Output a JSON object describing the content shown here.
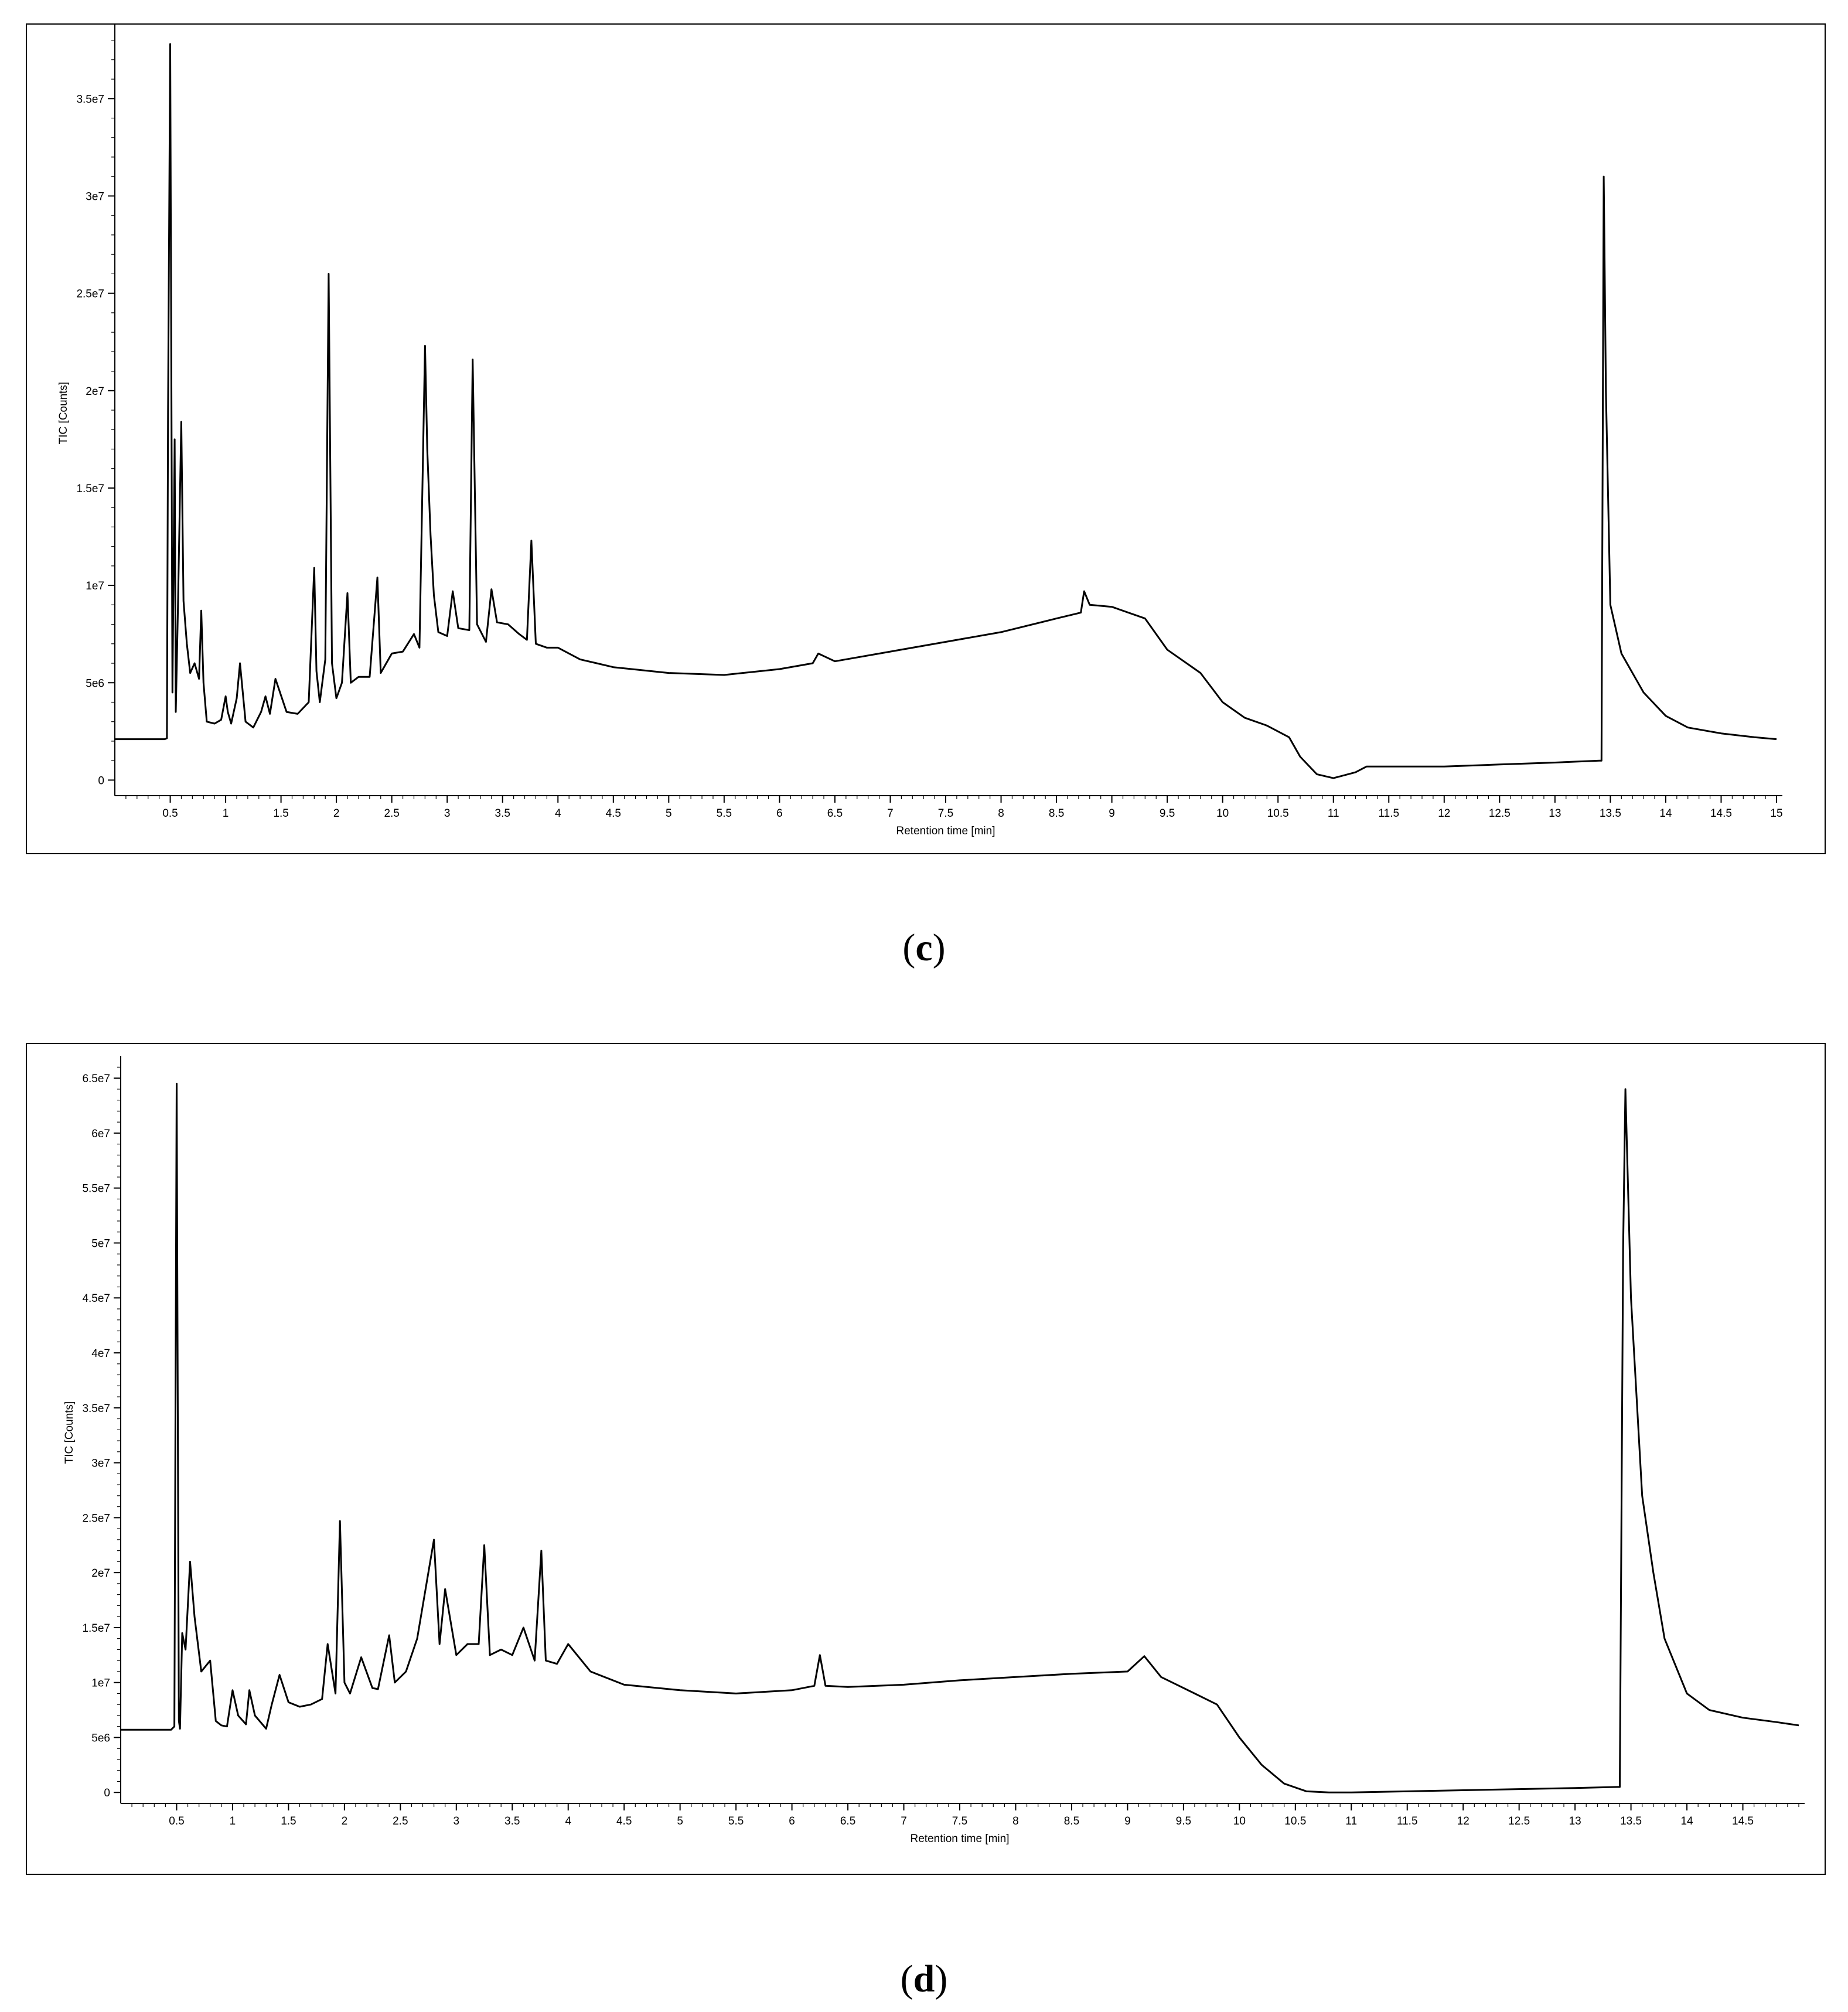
{
  "captions": {
    "c": "c",
    "d": "d"
  },
  "chart_data": [
    {
      "panel": "c",
      "type": "line",
      "xlabel": "Retention time [min]",
      "ylabel": "TIC [Counts]",
      "xlim": [
        0,
        15
      ],
      "ylim": [
        -800000,
        38500000
      ],
      "xticks": [
        0.5,
        1,
        1.5,
        2,
        2.5,
        3,
        3.5,
        4,
        4.5,
        5,
        5.5,
        6,
        6.5,
        7,
        7.5,
        8,
        8.5,
        9,
        9.5,
        10,
        10.5,
        11,
        11.5,
        12,
        12.5,
        13,
        13.5,
        14,
        14.5,
        15
      ],
      "xtick_labels": [
        "0.5",
        "1",
        "1.5",
        "2",
        "2.5",
        "3",
        "3.5",
        "4",
        "4.5",
        "5",
        "5.5",
        "6",
        "6.5",
        "7",
        "7.5",
        "8",
        "8.5",
        "9",
        "9.5",
        "10",
        "10.5",
        "11",
        "11.5",
        "12",
        "12.5",
        "13",
        "13.5",
        "14",
        "14.5",
        "15"
      ],
      "yticks": [
        0,
        5000000,
        10000000,
        15000000,
        20000000,
        25000000,
        30000000,
        35000000
      ],
      "ytick_labels": [
        "0",
        "5e6",
        "1e7",
        "1.5e7",
        "2e7",
        "2.5e7",
        "3e7",
        "3.5e7"
      ],
      "grid": false,
      "x": [
        0.0,
        0.45,
        0.47,
        0.48,
        0.5,
        0.52,
        0.54,
        0.55,
        0.57,
        0.6,
        0.62,
        0.65,
        0.68,
        0.72,
        0.76,
        0.78,
        0.8,
        0.83,
        0.9,
        0.96,
        1.0,
        1.02,
        1.05,
        1.1,
        1.13,
        1.18,
        1.25,
        1.32,
        1.36,
        1.4,
        1.45,
        1.55,
        1.65,
        1.75,
        1.8,
        1.82,
        1.85,
        1.9,
        1.93,
        1.96,
        2.0,
        2.05,
        2.1,
        2.13,
        2.2,
        2.3,
        2.37,
        2.4,
        2.5,
        2.6,
        2.7,
        2.75,
        2.8,
        2.82,
        2.85,
        2.88,
        2.92,
        3.0,
        3.05,
        3.1,
        3.2,
        3.23,
        3.27,
        3.35,
        3.4,
        3.45,
        3.55,
        3.65,
        3.72,
        3.76,
        3.8,
        3.9,
        4.0,
        4.2,
        4.5,
        5.0,
        5.5,
        6.0,
        6.3,
        6.35,
        6.5,
        7.0,
        7.5,
        8.0,
        8.5,
        8.72,
        8.75,
        8.8,
        9.0,
        9.3,
        9.5,
        9.8,
        10.0,
        10.2,
        10.4,
        10.6,
        10.7,
        10.85,
        11.0,
        11.2,
        11.3,
        12.0,
        12.5,
        13.0,
        13.4,
        13.42,
        13.44,
        13.46,
        13.5,
        13.6,
        13.8,
        14.0,
        14.2,
        14.5,
        14.8,
        15.0
      ],
      "y": [
        2100000,
        2100000,
        2150000,
        18900000,
        37800000,
        4500000,
        17500000,
        3500000,
        9000000,
        18400000,
        9200000,
        7000000,
        5500000,
        6000000,
        5200000,
        8700000,
        5000000,
        3000000,
        2900000,
        3100000,
        4300000,
        3500000,
        2900000,
        4200000,
        6000000,
        3000000,
        2700000,
        3500000,
        4300000,
        3400000,
        5200000,
        3500000,
        3400000,
        4000000,
        10900000,
        5600000,
        4000000,
        6200000,
        26000000,
        6000000,
        4200000,
        5000000,
        9600000,
        5000000,
        5300000,
        5300000,
        10400000,
        5500000,
        6500000,
        6600000,
        7500000,
        6800000,
        22300000,
        17000000,
        12600000,
        9500000,
        7600000,
        7400000,
        9700000,
        7800000,
        7700000,
        21600000,
        8000000,
        7100000,
        9800000,
        8100000,
        8000000,
        7500000,
        7200000,
        12300000,
        7000000,
        6800000,
        6800000,
        6200000,
        5800000,
        5500000,
        5400000,
        5700000,
        6000000,
        6500000,
        6100000,
        6600000,
        7100000,
        7600000,
        8300000,
        8600000,
        9700000,
        9000000,
        8900000,
        8300000,
        6700000,
        5500000,
        4000000,
        3200000,
        2800000,
        2200000,
        1200000,
        300000,
        100000,
        400000,
        700000,
        700000,
        800000,
        900000,
        1000000,
        1000000,
        31000000,
        20000000,
        9000000,
        6500000,
        4500000,
        3300000,
        2700000,
        2400000,
        2200000,
        2100000
      ]
    },
    {
      "panel": "d",
      "type": "line",
      "xlabel": "Retention time [min]",
      "ylabel": "TIC [Counts]",
      "xlim": [
        0,
        15
      ],
      "ylim": [
        -1000000,
        66500000
      ],
      "xticks": [
        0.5,
        1,
        1.5,
        2,
        2.5,
        3,
        3.5,
        4,
        4.5,
        5,
        5.5,
        6,
        6.5,
        7,
        7.5,
        8,
        8.5,
        9,
        9.5,
        10,
        10.5,
        11,
        11.5,
        12,
        12.5,
        13,
        13.5,
        14,
        14.5
      ],
      "xtick_labels": [
        "0.5",
        "1",
        "1.5",
        "2",
        "2.5",
        "3",
        "3.5",
        "4",
        "4.5",
        "5",
        "5.5",
        "6",
        "6.5",
        "7",
        "7.5",
        "8",
        "8.5",
        "9",
        "9.5",
        "10",
        "10.5",
        "11",
        "11.5",
        "12",
        "12.5",
        "13",
        "13.5",
        "14",
        "14.5"
      ],
      "yticks": [
        0,
        5000000,
        10000000,
        15000000,
        20000000,
        25000000,
        30000000,
        35000000,
        40000000,
        45000000,
        50000000,
        55000000,
        60000000,
        65000000
      ],
      "ytick_labels": [
        "0",
        "5e6",
        "1e7",
        "1.5e7",
        "2e7",
        "2.5e7",
        "3e7",
        "3.5e7",
        "4e7",
        "4.5e7",
        "5e7",
        "5.5e7",
        "6e7",
        "6.5e7"
      ],
      "grid": false,
      "x": [
        0.0,
        0.45,
        0.48,
        0.5,
        0.52,
        0.53,
        0.55,
        0.58,
        0.62,
        0.66,
        0.72,
        0.8,
        0.85,
        0.9,
        0.95,
        1.0,
        1.05,
        1.12,
        1.15,
        1.2,
        1.3,
        1.35,
        1.42,
        1.5,
        1.6,
        1.7,
        1.8,
        1.85,
        1.92,
        1.96,
        2.0,
        2.05,
        2.15,
        2.25,
        2.3,
        2.4,
        2.45,
        2.55,
        2.65,
        2.8,
        2.85,
        2.9,
        3.0,
        3.1,
        3.2,
        3.25,
        3.3,
        3.4,
        3.5,
        3.6,
        3.7,
        3.76,
        3.8,
        3.9,
        4.0,
        4.2,
        4.5,
        5.0,
        5.5,
        6.0,
        6.2,
        6.25,
        6.3,
        6.5,
        7.0,
        7.5,
        8.0,
        8.5,
        9.0,
        9.15,
        9.3,
        9.6,
        9.8,
        10.0,
        10.2,
        10.4,
        10.6,
        10.8,
        11.0,
        12.0,
        13.0,
        13.38,
        13.4,
        13.43,
        13.45,
        13.5,
        13.6,
        13.7,
        13.8,
        14.0,
        14.2,
        14.5,
        14.8,
        15.0
      ],
      "y": [
        5700000,
        5700000,
        6000000,
        64500000,
        6500000,
        5800000,
        14500000,
        13000000,
        21000000,
        16000000,
        11000000,
        12000000,
        6500000,
        6100000,
        6000000,
        9300000,
        7000000,
        6200000,
        9300000,
        7000000,
        5800000,
        8000000,
        10700000,
        8200000,
        7800000,
        8000000,
        8500000,
        13500000,
        9000000,
        24700000,
        10000000,
        9000000,
        12300000,
        9500000,
        9400000,
        14300000,
        10000000,
        11000000,
        14000000,
        23000000,
        13500000,
        18500000,
        12500000,
        13500000,
        13500000,
        22500000,
        12500000,
        13000000,
        12500000,
        15000000,
        12000000,
        22000000,
        12000000,
        11700000,
        13500000,
        11000000,
        9800000,
        9300000,
        9000000,
        9300000,
        9700000,
        12500000,
        9700000,
        9600000,
        9800000,
        10200000,
        10500000,
        10800000,
        11000000,
        12400000,
        10500000,
        9000000,
        8000000,
        5000000,
        2500000,
        800000,
        100000,
        0,
        0,
        200000,
        400000,
        500000,
        500000,
        49500000,
        64000000,
        45000000,
        27000000,
        20000000,
        14000000,
        9000000,
        7500000,
        6800000,
        6400000,
        6100000
      ]
    }
  ]
}
